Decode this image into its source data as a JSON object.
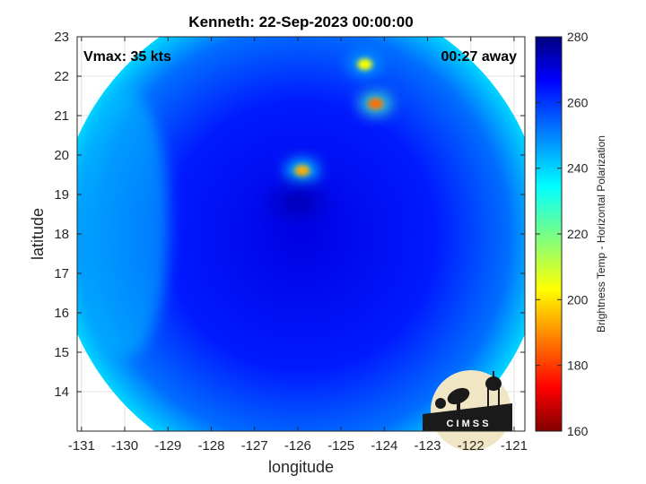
{
  "chart_data": {
    "type": "heatmap",
    "title": "Kenneth: 22-Sep-2023 00:00:00",
    "xlabel": "longitude",
    "ylabel": "latitude",
    "xlim": [
      -131.1,
      -120.75
    ],
    "ylim": [
      13.0,
      23.0
    ],
    "xticks": [
      -131,
      -130,
      -129,
      -128,
      -127,
      -126,
      -125,
      -124,
      -123,
      -122,
      -121
    ],
    "yticks": [
      14,
      15,
      16,
      17,
      18,
      19,
      20,
      21,
      22,
      23
    ],
    "grid": true,
    "annotations": {
      "top_left": "Vmax: 35 kts",
      "top_right": "00:27 away"
    },
    "colorbar": {
      "label": "Brightness Temp - Horizontal Polarization",
      "range": [
        160,
        280
      ],
      "ticks": [
        160,
        180,
        200,
        220,
        240,
        260,
        280
      ],
      "colormap": "jet"
    },
    "swath": {
      "center": [
        -125.92,
        17.95
      ],
      "radius_deg": 5.65
    },
    "features": [
      {
        "lon": -125.9,
        "lat": 19.6,
        "value": 196
      },
      {
        "lon": -124.2,
        "lat": 21.3,
        "value": 188
      },
      {
        "lon": -124.45,
        "lat": 22.3,
        "value": 205
      },
      {
        "lon": -126.0,
        "lat": 18.8,
        "value": 272
      }
    ],
    "background_value": 262,
    "logo_text": "C I M S S"
  }
}
